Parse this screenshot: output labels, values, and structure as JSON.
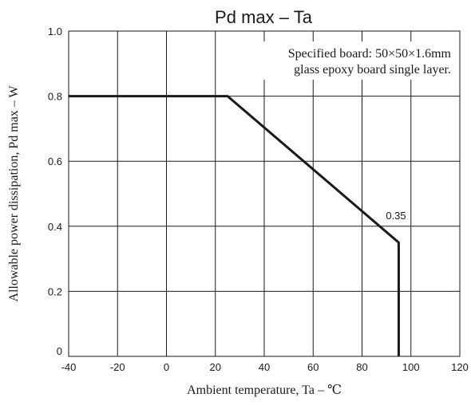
{
  "chart_data": {
    "type": "line",
    "title": "Pd max  –  Ta",
    "xlabel": "Ambient temperature, Ta – ℃",
    "ylabel": "Allowable power dissipation, Pd max – W",
    "xlim": [
      -40,
      120
    ],
    "ylim": [
      0,
      1.0
    ],
    "x_ticks": [
      -40,
      -20,
      0,
      20,
      40,
      60,
      80,
      100,
      120
    ],
    "x_tick_labels": [
      "-40",
      "-20",
      "0",
      "20",
      "40",
      "60",
      "80",
      "100",
      "120"
    ],
    "y_ticks": [
      0,
      0.2,
      0.4,
      0.6,
      0.8,
      1.0
    ],
    "y_tick_labels": [
      "0",
      "0.2",
      "0.4",
      "0.6",
      "0.8",
      "1.0"
    ],
    "grid": true,
    "annotation_lines": [
      "Specified board: 50×50×1.6mm",
      "glass epoxy board single layer."
    ],
    "series": [
      {
        "x": [
          -40,
          25,
          95,
          95
        ],
        "y": [
          0.8,
          0.8,
          0.35,
          0
        ],
        "color": "#1a1a1a"
      }
    ],
    "data_labels": [
      {
        "text": "0.35",
        "x": 95,
        "y": 0.35
      }
    ]
  }
}
